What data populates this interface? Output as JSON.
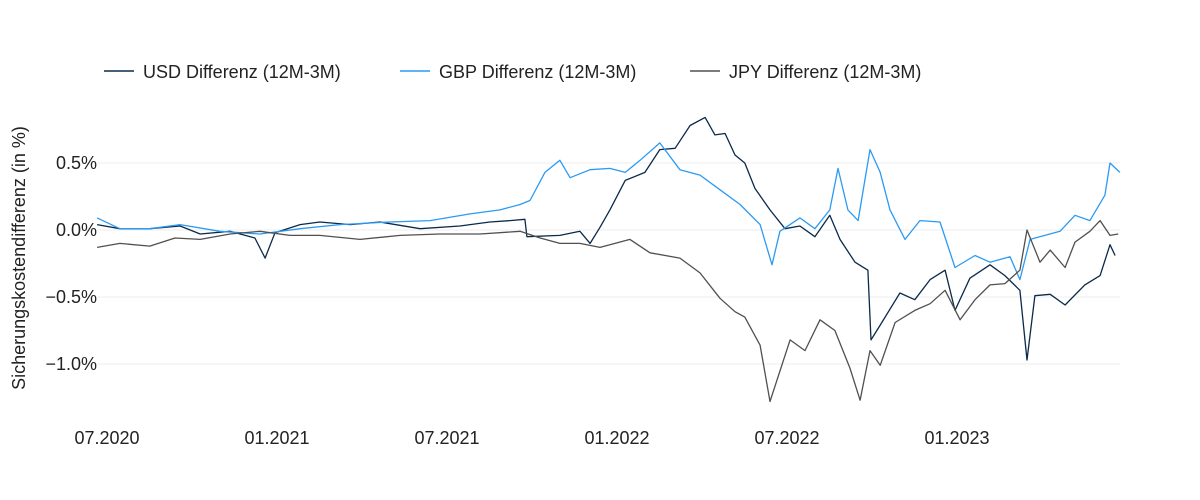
{
  "chart_data": {
    "type": "line",
    "title": "",
    "xlabel": "",
    "ylabel": "Sicherungskostendifferenz (in %)",
    "x_unit": "fractional year",
    "xlim": [
      2020.47,
      2023.48
    ],
    "ylim": [
      -1.35,
      0.9
    ],
    "grid": true,
    "legend_position": "top-left",
    "x_ticks": [
      {
        "value": 2020.5,
        "label": "07.2020"
      },
      {
        "value": 2021.0,
        "label": "01.2021"
      },
      {
        "value": 2021.5,
        "label": "07.2021"
      },
      {
        "value": 2022.0,
        "label": "01.2022"
      },
      {
        "value": 2022.5,
        "label": "07.2022"
      },
      {
        "value": 2023.0,
        "label": "01.2023"
      }
    ],
    "y_ticks": [
      {
        "value": 0.5,
        "label": "0.5%"
      },
      {
        "value": 0.0,
        "label": "0.0%"
      },
      {
        "value": -0.5,
        "label": "−0.5%"
      },
      {
        "value": -1.0,
        "label": "−1.0%"
      }
    ],
    "series": [
      {
        "name": "USD Differenz (12M-3M)",
        "color": "#0b2a4a",
        "x": [
          2020.471,
          2020.538,
          2020.626,
          2020.715,
          2020.774,
          2020.862,
          2020.935,
          2020.965,
          2020.994,
          2021.068,
          2021.126,
          2021.215,
          2021.303,
          2021.421,
          2021.538,
          2021.626,
          2021.685,
          2021.729,
          2021.735,
          2021.832,
          2021.891,
          2021.921,
          2021.95,
          2021.979,
          2022.024,
          2022.082,
          2022.126,
          2022.171,
          2022.215,
          2022.259,
          2022.288,
          2022.318,
          2022.347,
          2022.376,
          2022.406,
          2022.45,
          2022.494,
          2022.538,
          2022.582,
          2022.626,
          2022.656,
          2022.7,
          2022.738,
          2022.747,
          2022.774,
          2022.832,
          2022.876,
          2022.921,
          2022.965,
          2022.994,
          2023.038,
          2023.097,
          2023.141,
          2023.185,
          2023.206,
          2023.229,
          2023.274,
          2023.318,
          2023.376,
          2023.421,
          2023.45,
          2023.465
        ],
        "y": [
          0.04,
          0.01,
          0.01,
          0.03,
          -0.03,
          -0.01,
          -0.06,
          -0.21,
          -0.02,
          0.04,
          0.06,
          0.04,
          0.06,
          0.01,
          0.03,
          0.06,
          0.07,
          0.08,
          -0.05,
          -0.04,
          -0.01,
          -0.1,
          0.02,
          0.15,
          0.37,
          0.43,
          0.6,
          0.61,
          0.78,
          0.84,
          0.71,
          0.72,
          0.56,
          0.5,
          0.31,
          0.15,
          0.01,
          0.03,
          -0.05,
          0.11,
          -0.07,
          -0.24,
          -0.3,
          -0.82,
          -0.71,
          -0.47,
          -0.52,
          -0.37,
          -0.3,
          -0.6,
          -0.36,
          -0.26,
          -0.34,
          -0.45,
          -0.97,
          -0.49,
          -0.48,
          -0.56,
          -0.41,
          -0.34,
          -0.11,
          -0.19
        ]
      },
      {
        "name": "GBP Differenz (12M-3M)",
        "color": "#2b9af3",
        "x": [
          2020.471,
          2020.538,
          2020.626,
          2020.715,
          2020.832,
          2020.95,
          2021.068,
          2021.185,
          2021.332,
          2021.45,
          2021.568,
          2021.656,
          2021.715,
          2021.744,
          2021.788,
          2021.832,
          2021.862,
          2021.921,
          2021.979,
          2022.024,
          2022.068,
          2022.126,
          2022.185,
          2022.244,
          2022.303,
          2022.362,
          2022.421,
          2022.456,
          2022.479,
          2022.538,
          2022.582,
          2022.626,
          2022.65,
          2022.679,
          2022.709,
          2022.744,
          2022.774,
          2022.803,
          2022.847,
          2022.891,
          2022.95,
          2022.994,
          2023.053,
          2023.097,
          2023.156,
          2023.185,
          2023.215,
          2023.303,
          2023.347,
          2023.391,
          2023.435,
          2023.45,
          2023.479
        ],
        "y": [
          0.09,
          0.01,
          0.01,
          0.04,
          -0.01,
          -0.03,
          0.01,
          0.04,
          0.06,
          0.07,
          0.12,
          0.15,
          0.19,
          0.22,
          0.43,
          0.52,
          0.39,
          0.45,
          0.46,
          0.43,
          0.52,
          0.65,
          0.45,
          0.41,
          0.3,
          0.19,
          0.04,
          -0.26,
          -0.01,
          0.09,
          0.01,
          0.15,
          0.46,
          0.15,
          0.07,
          0.6,
          0.43,
          0.15,
          -0.07,
          0.07,
          0.06,
          -0.28,
          -0.19,
          -0.24,
          -0.2,
          -0.37,
          -0.07,
          -0.01,
          0.11,
          0.07,
          0.26,
          0.5,
          0.43
        ]
      },
      {
        "name": "JPY Differenz (12M-3M)",
        "color": "#505050",
        "x": [
          2020.471,
          2020.538,
          2020.626,
          2020.7,
          2020.774,
          2020.862,
          2020.95,
          2021.038,
          2021.126,
          2021.244,
          2021.362,
          2021.479,
          2021.597,
          2021.715,
          2021.774,
          2021.832,
          2021.891,
          2021.95,
          2021.994,
          2022.038,
          2022.097,
          2022.185,
          2022.244,
          2022.303,
          2022.347,
          2022.376,
          2022.421,
          2022.45,
          2022.509,
          2022.553,
          2022.597,
          2022.641,
          2022.685,
          2022.715,
          2022.744,
          2022.774,
          2022.818,
          2022.876,
          2022.921,
          2022.965,
          2023.009,
          2023.053,
          2023.097,
          2023.141,
          2023.185,
          2023.206,
          2023.244,
          2023.274,
          2023.318,
          2023.347,
          2023.391,
          2023.421,
          2023.45,
          2023.474
        ],
        "y": [
          -0.13,
          -0.1,
          -0.12,
          -0.06,
          -0.07,
          -0.03,
          -0.01,
          -0.04,
          -0.04,
          -0.07,
          -0.04,
          -0.03,
          -0.03,
          -0.01,
          -0.06,
          -0.1,
          -0.1,
          -0.13,
          -0.1,
          -0.07,
          -0.17,
          -0.21,
          -0.32,
          -0.51,
          -0.61,
          -0.65,
          -0.86,
          -1.28,
          -0.82,
          -0.9,
          -0.67,
          -0.75,
          -1.03,
          -1.27,
          -0.9,
          -1.01,
          -0.69,
          -0.6,
          -0.55,
          -0.45,
          -0.67,
          -0.52,
          -0.41,
          -0.4,
          -0.3,
          0.0,
          -0.24,
          -0.15,
          -0.28,
          -0.09,
          -0.01,
          0.07,
          -0.04,
          -0.03
        ]
      }
    ]
  }
}
